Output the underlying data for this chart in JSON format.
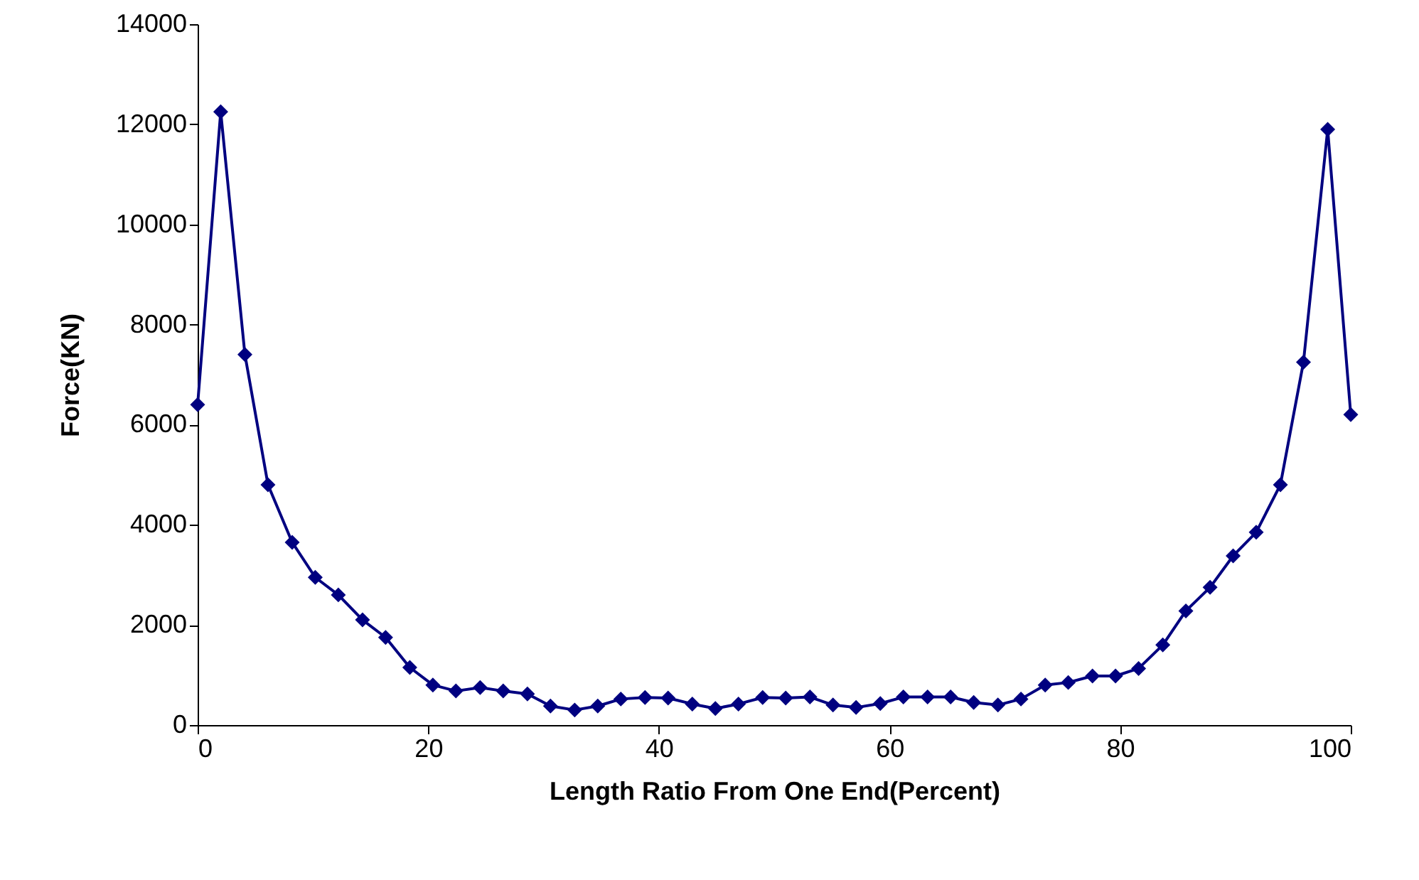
{
  "chart_data": {
    "type": "line",
    "xlabel": "Length Ratio From One End(Percent)",
    "ylabel": "Force(KN)",
    "x": [
      0,
      2,
      4.1,
      6.1,
      8.2,
      10.2,
      12.2,
      14.3,
      16.3,
      18.4,
      20.4,
      22.4,
      24.5,
      26.5,
      28.6,
      30.6,
      32.7,
      34.7,
      36.7,
      38.8,
      40.8,
      42.9,
      44.9,
      46.9,
      49,
      51,
      53.1,
      55.1,
      57.1,
      59.2,
      61.2,
      63.3,
      65.3,
      67.3,
      69.4,
      71.4,
      73.5,
      75.5,
      77.6,
      79.6,
      81.6,
      83.7,
      85.7,
      87.8,
      89.8,
      91.8,
      93.9,
      95.9,
      98,
      100
    ],
    "series": [
      {
        "color": "#000080",
        "values": [
          6400,
          12250,
          7400,
          4800,
          3650,
          2950,
          2600,
          2100,
          1750,
          1150,
          800,
          680,
          750,
          680,
          620,
          380,
          300,
          380,
          520,
          550,
          540,
          420,
          330,
          420,
          550,
          540,
          560,
          400,
          350,
          430,
          560,
          560,
          560,
          450,
          400,
          520,
          800,
          850,
          980,
          980,
          1130,
          1600,
          2280,
          2750,
          3380,
          3850,
          4800,
          7250,
          11900,
          6200
        ]
      }
    ],
    "xlim": [
      0,
      100
    ],
    "xticks": [
      0,
      20,
      40,
      60,
      80,
      100
    ],
    "ylim": [
      0,
      14000
    ],
    "yticks": [
      0,
      2000,
      4000,
      6000,
      8000,
      10000,
      12000,
      14000
    ],
    "grid": false,
    "marker": "diamond",
    "line_style": "solid"
  }
}
